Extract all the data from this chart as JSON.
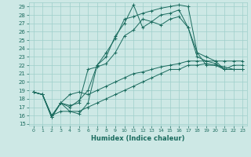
{
  "title": "",
  "xlabel": "Humidex (Indice chaleur)",
  "background_color": "#cde8e5",
  "grid_color": "#9fcfcb",
  "line_color": "#1a6b5e",
  "marker_color": "#1a6b5e",
  "xlim": [
    -0.5,
    23.5
  ],
  "ylim": [
    14.8,
    29.5
  ],
  "xticks": [
    0,
    1,
    2,
    3,
    4,
    5,
    6,
    7,
    8,
    9,
    10,
    11,
    12,
    13,
    14,
    15,
    16,
    17,
    18,
    19,
    20,
    21,
    22,
    23
  ],
  "yticks": [
    15,
    16,
    17,
    18,
    19,
    20,
    21,
    22,
    23,
    24,
    25,
    26,
    27,
    28,
    29
  ],
  "series": [
    [
      18.8,
      18.5,
      15.8,
      17.5,
      17.2,
      17.5,
      21.5,
      21.8,
      22.2,
      23.5,
      25.5,
      26.2,
      27.5,
      27.2,
      28.0,
      28.2,
      28.6,
      26.5,
      23.0,
      22.5,
      22.2,
      21.5,
      21.5,
      21.5
    ],
    [
      18.8,
      18.5,
      15.8,
      17.5,
      16.5,
      16.2,
      17.5,
      22.0,
      23.0,
      25.5,
      27.0,
      29.2,
      26.5,
      27.2,
      26.8,
      27.5,
      27.8,
      26.5,
      23.5,
      23.0,
      22.5,
      21.5,
      22.0,
      22.0
    ],
    [
      18.8,
      18.5,
      15.8,
      17.5,
      17.0,
      17.8,
      19.0,
      22.0,
      23.5,
      25.2,
      27.5,
      27.8,
      28.2,
      28.5,
      28.8,
      29.0,
      29.2,
      29.0,
      23.5,
      22.0,
      22.0,
      21.5,
      21.5,
      21.5
    ],
    [
      18.8,
      18.5,
      16.0,
      17.5,
      18.5,
      18.8,
      18.5,
      19.0,
      19.5,
      20.0,
      20.5,
      21.0,
      21.2,
      21.5,
      21.8,
      22.0,
      22.2,
      22.5,
      22.5,
      22.5,
      22.5,
      22.5,
      22.5,
      22.5
    ],
    [
      18.8,
      18.5,
      16.0,
      16.5,
      16.5,
      16.5,
      17.0,
      17.5,
      18.0,
      18.5,
      19.0,
      19.5,
      20.0,
      20.5,
      21.0,
      21.5,
      21.5,
      22.0,
      22.0,
      22.2,
      22.0,
      21.8,
      21.5,
      21.5
    ]
  ]
}
